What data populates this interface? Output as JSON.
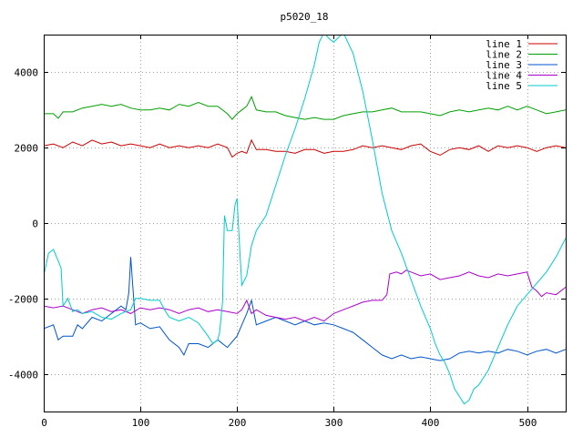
{
  "chart_data": {
    "type": "line",
    "title": "p5020_18",
    "xlim": [
      0,
      540
    ],
    "ylim": [
      -5000,
      5000
    ],
    "xticks": [
      0,
      100,
      200,
      300,
      400,
      500
    ],
    "yticks": [
      -4000,
      -2000,
      0,
      2000,
      4000
    ],
    "grid": true,
    "legend": "top-right",
    "series": [
      {
        "name": "line 1",
        "color": "#cc0000",
        "points": [
          [
            0,
            2050
          ],
          [
            10,
            2100
          ],
          [
            20,
            2000
          ],
          [
            30,
            2150
          ],
          [
            40,
            2050
          ],
          [
            50,
            2200
          ],
          [
            60,
            2100
          ],
          [
            70,
            2150
          ],
          [
            80,
            2050
          ],
          [
            90,
            2100
          ],
          [
            100,
            2050
          ],
          [
            110,
            2000
          ],
          [
            120,
            2100
          ],
          [
            130,
            2000
          ],
          [
            140,
            2050
          ],
          [
            150,
            2000
          ],
          [
            160,
            2050
          ],
          [
            170,
            2000
          ],
          [
            180,
            2100
          ],
          [
            190,
            2000
          ],
          [
            195,
            1750
          ],
          [
            200,
            1850
          ],
          [
            205,
            1900
          ],
          [
            210,
            1850
          ],
          [
            215,
            2200
          ],
          [
            220,
            1950
          ],
          [
            230,
            1950
          ],
          [
            240,
            1900
          ],
          [
            250,
            1900
          ],
          [
            260,
            1850
          ],
          [
            270,
            1950
          ],
          [
            280,
            1950
          ],
          [
            290,
            1850
          ],
          [
            300,
            1900
          ],
          [
            310,
            1900
          ],
          [
            320,
            1950
          ],
          [
            330,
            2050
          ],
          [
            340,
            2000
          ],
          [
            350,
            2050
          ],
          [
            360,
            2000
          ],
          [
            370,
            1950
          ],
          [
            380,
            2050
          ],
          [
            390,
            2100
          ],
          [
            400,
            1900
          ],
          [
            410,
            1800
          ],
          [
            420,
            1950
          ],
          [
            430,
            2000
          ],
          [
            440,
            1950
          ],
          [
            450,
            2050
          ],
          [
            460,
            1900
          ],
          [
            470,
            2050
          ],
          [
            480,
            2000
          ],
          [
            490,
            2050
          ],
          [
            500,
            2000
          ],
          [
            510,
            1900
          ],
          [
            520,
            2000
          ],
          [
            530,
            2050
          ],
          [
            540,
            2000
          ]
        ]
      },
      {
        "name": "line 2",
        "color": "#00a000",
        "points": [
          [
            0,
            2900
          ],
          [
            10,
            2900
          ],
          [
            15,
            2780
          ],
          [
            20,
            2950
          ],
          [
            30,
            2950
          ],
          [
            40,
            3050
          ],
          [
            50,
            3100
          ],
          [
            60,
            3150
          ],
          [
            70,
            3100
          ],
          [
            80,
            3150
          ],
          [
            90,
            3050
          ],
          [
            100,
            3000
          ],
          [
            110,
            3000
          ],
          [
            120,
            3050
          ],
          [
            130,
            3000
          ],
          [
            140,
            3150
          ],
          [
            150,
            3100
          ],
          [
            160,
            3200
          ],
          [
            170,
            3100
          ],
          [
            180,
            3100
          ],
          [
            190,
            2900
          ],
          [
            195,
            2750
          ],
          [
            200,
            2900
          ],
          [
            205,
            3000
          ],
          [
            210,
            3100
          ],
          [
            215,
            3350
          ],
          [
            220,
            3000
          ],
          [
            230,
            2950
          ],
          [
            240,
            2950
          ],
          [
            250,
            2850
          ],
          [
            260,
            2800
          ],
          [
            270,
            2750
          ],
          [
            280,
            2800
          ],
          [
            290,
            2750
          ],
          [
            300,
            2750
          ],
          [
            310,
            2850
          ],
          [
            320,
            2900
          ],
          [
            330,
            2950
          ],
          [
            340,
            2950
          ],
          [
            350,
            3000
          ],
          [
            360,
            3050
          ],
          [
            370,
            2950
          ],
          [
            380,
            2950
          ],
          [
            390,
            2950
          ],
          [
            400,
            2900
          ],
          [
            410,
            2850
          ],
          [
            420,
            2950
          ],
          [
            430,
            3000
          ],
          [
            440,
            2950
          ],
          [
            450,
            3000
          ],
          [
            460,
            3050
          ],
          [
            470,
            3000
          ],
          [
            480,
            3100
          ],
          [
            490,
            3000
          ],
          [
            500,
            3100
          ],
          [
            510,
            3000
          ],
          [
            520,
            2900
          ],
          [
            530,
            2950
          ],
          [
            540,
            3000
          ]
        ]
      },
      {
        "name": "line 3",
        "color": "#0055cc",
        "points": [
          [
            0,
            -2800
          ],
          [
            10,
            -2700
          ],
          [
            15,
            -3100
          ],
          [
            20,
            -3000
          ],
          [
            30,
            -3000
          ],
          [
            35,
            -2700
          ],
          [
            40,
            -2800
          ],
          [
            50,
            -2500
          ],
          [
            60,
            -2600
          ],
          [
            70,
            -2400
          ],
          [
            80,
            -2200
          ],
          [
            85,
            -2300
          ],
          [
            88,
            -1850
          ],
          [
            90,
            -900
          ],
          [
            95,
            -2700
          ],
          [
            100,
            -2650
          ],
          [
            110,
            -2800
          ],
          [
            120,
            -2750
          ],
          [
            130,
            -3100
          ],
          [
            140,
            -3300
          ],
          [
            145,
            -3500
          ],
          [
            150,
            -3200
          ],
          [
            160,
            -3200
          ],
          [
            170,
            -3300
          ],
          [
            180,
            -3100
          ],
          [
            190,
            -3300
          ],
          [
            200,
            -3000
          ],
          [
            205,
            -2700
          ],
          [
            210,
            -2400
          ],
          [
            215,
            -2050
          ],
          [
            220,
            -2700
          ],
          [
            230,
            -2600
          ],
          [
            240,
            -2500
          ],
          [
            250,
            -2600
          ],
          [
            260,
            -2700
          ],
          [
            270,
            -2600
          ],
          [
            280,
            -2700
          ],
          [
            290,
            -2650
          ],
          [
            300,
            -2700
          ],
          [
            310,
            -2800
          ],
          [
            320,
            -2900
          ],
          [
            330,
            -3100
          ],
          [
            340,
            -3300
          ],
          [
            350,
            -3500
          ],
          [
            360,
            -3600
          ],
          [
            370,
            -3500
          ],
          [
            380,
            -3600
          ],
          [
            390,
            -3550
          ],
          [
            400,
            -3600
          ],
          [
            410,
            -3650
          ],
          [
            420,
            -3600
          ],
          [
            430,
            -3450
          ],
          [
            440,
            -3400
          ],
          [
            450,
            -3450
          ],
          [
            460,
            -3400
          ],
          [
            470,
            -3450
          ],
          [
            480,
            -3350
          ],
          [
            490,
            -3400
          ],
          [
            500,
            -3500
          ],
          [
            510,
            -3400
          ],
          [
            520,
            -3350
          ],
          [
            530,
            -3450
          ],
          [
            540,
            -3350
          ]
        ]
      },
      {
        "name": "line 4",
        "color": "#aa00cc",
        "points": [
          [
            0,
            -2200
          ],
          [
            10,
            -2250
          ],
          [
            20,
            -2200
          ],
          [
            30,
            -2300
          ],
          [
            40,
            -2400
          ],
          [
            50,
            -2300
          ],
          [
            60,
            -2250
          ],
          [
            70,
            -2350
          ],
          [
            80,
            -2300
          ],
          [
            90,
            -2400
          ],
          [
            100,
            -2250
          ],
          [
            110,
            -2300
          ],
          [
            120,
            -2250
          ],
          [
            130,
            -2300
          ],
          [
            140,
            -2400
          ],
          [
            150,
            -2300
          ],
          [
            160,
            -2250
          ],
          [
            170,
            -2350
          ],
          [
            180,
            -2300
          ],
          [
            190,
            -2350
          ],
          [
            200,
            -2400
          ],
          [
            205,
            -2300
          ],
          [
            210,
            -2050
          ],
          [
            215,
            -2400
          ],
          [
            220,
            -2300
          ],
          [
            230,
            -2450
          ],
          [
            240,
            -2500
          ],
          [
            250,
            -2550
          ],
          [
            260,
            -2500
          ],
          [
            270,
            -2600
          ],
          [
            280,
            -2500
          ],
          [
            290,
            -2600
          ],
          [
            300,
            -2400
          ],
          [
            310,
            -2300
          ],
          [
            320,
            -2200
          ],
          [
            330,
            -2100
          ],
          [
            340,
            -2050
          ],
          [
            350,
            -2050
          ],
          [
            355,
            -1900
          ],
          [
            358,
            -1350
          ],
          [
            365,
            -1300
          ],
          [
            370,
            -1350
          ],
          [
            375,
            -1250
          ],
          [
            380,
            -1300
          ],
          [
            390,
            -1400
          ],
          [
            400,
            -1350
          ],
          [
            410,
            -1500
          ],
          [
            420,
            -1450
          ],
          [
            430,
            -1400
          ],
          [
            440,
            -1300
          ],
          [
            450,
            -1400
          ],
          [
            460,
            -1450
          ],
          [
            470,
            -1350
          ],
          [
            480,
            -1400
          ],
          [
            490,
            -1350
          ],
          [
            500,
            -1300
          ],
          [
            505,
            -1700
          ],
          [
            510,
            -1800
          ],
          [
            515,
            -1950
          ],
          [
            520,
            -1850
          ],
          [
            530,
            -1900
          ],
          [
            540,
            -1700
          ]
        ]
      },
      {
        "name": "line 5",
        "color": "#00cccc",
        "points": [
          [
            0,
            -1400
          ],
          [
            5,
            -800
          ],
          [
            10,
            -700
          ],
          [
            15,
            -1000
          ],
          [
            18,
            -1200
          ],
          [
            20,
            -2200
          ],
          [
            25,
            -2000
          ],
          [
            30,
            -2350
          ],
          [
            35,
            -2300
          ],
          [
            40,
            -2400
          ],
          [
            50,
            -2350
          ],
          [
            60,
            -2500
          ],
          [
            70,
            -2550
          ],
          [
            80,
            -2400
          ],
          [
            90,
            -2300
          ],
          [
            95,
            -2000
          ],
          [
            100,
            -2000
          ],
          [
            110,
            -2050
          ],
          [
            120,
            -2050
          ],
          [
            125,
            -2300
          ],
          [
            130,
            -2500
          ],
          [
            140,
            -2600
          ],
          [
            150,
            -2500
          ],
          [
            160,
            -2650
          ],
          [
            170,
            -3000
          ],
          [
            175,
            -3200
          ],
          [
            180,
            -3100
          ],
          [
            182,
            -2900
          ],
          [
            185,
            -2100
          ],
          [
            187,
            200
          ],
          [
            190,
            -200
          ],
          [
            195,
            -200
          ],
          [
            198,
            500
          ],
          [
            200,
            650
          ],
          [
            203,
            -800
          ],
          [
            205,
            -1650
          ],
          [
            210,
            -1400
          ],
          [
            215,
            -600
          ],
          [
            220,
            -200
          ],
          [
            230,
            200
          ],
          [
            240,
            1000
          ],
          [
            250,
            1800
          ],
          [
            260,
            2500
          ],
          [
            270,
            3300
          ],
          [
            280,
            4200
          ],
          [
            285,
            4800
          ],
          [
            290,
            5050
          ],
          [
            295,
            4900
          ],
          [
            300,
            4800
          ],
          [
            310,
            5050
          ],
          [
            320,
            4500
          ],
          [
            330,
            3500
          ],
          [
            340,
            2200
          ],
          [
            350,
            800
          ],
          [
            360,
            -200
          ],
          [
            370,
            -800
          ],
          [
            380,
            -1500
          ],
          [
            390,
            -2200
          ],
          [
            400,
            -2800
          ],
          [
            405,
            -3200
          ],
          [
            410,
            -3500
          ],
          [
            415,
            -3700
          ],
          [
            420,
            -4000
          ],
          [
            425,
            -4400
          ],
          [
            430,
            -4600
          ],
          [
            435,
            -4800
          ],
          [
            440,
            -4700
          ],
          [
            445,
            -4400
          ],
          [
            450,
            -4300
          ],
          [
            460,
            -3900
          ],
          [
            470,
            -3300
          ],
          [
            480,
            -2700
          ],
          [
            490,
            -2200
          ],
          [
            500,
            -1900
          ],
          [
            510,
            -1600
          ],
          [
            520,
            -1300
          ],
          [
            530,
            -900
          ],
          [
            540,
            -400
          ]
        ]
      }
    ]
  }
}
